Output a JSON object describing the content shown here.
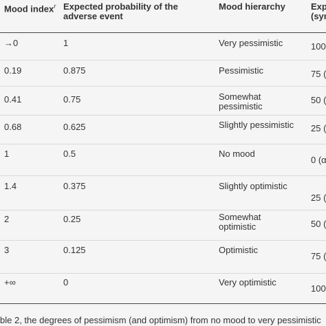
{
  "table": {
    "headers": {
      "mood_index": "Mood index",
      "mood_index_sub": "r",
      "expected_probability": "Expected probability of the adverse event",
      "mood_hierarchy": "Mood hierarchy",
      "expected_partial": "Expe",
      "symbol_partial": "(sym"
    },
    "rows": [
      {
        "index": "→0",
        "probability": "1",
        "hierarchy": "Very pessimistic",
        "extra": "100"
      },
      {
        "index": "0.19",
        "probability": "0.875",
        "hierarchy": "Pessimistic",
        "extra": "75 ("
      },
      {
        "index": "0.41",
        "probability": "0.75",
        "hierarchy": "Somewhat pessimistic",
        "extra": "50 ("
      },
      {
        "index": "0.68",
        "probability": "0.625",
        "hierarchy": "Slightly pessimistic",
        "extra": "25 ("
      },
      {
        "index": "1",
        "probability": "0.5",
        "hierarchy": "No mood",
        "extra": "0 (α"
      },
      {
        "index": "1.4",
        "probability": "0.375",
        "hierarchy": "Slightly optimistic",
        "extra": "25 ("
      },
      {
        "index": "2",
        "probability": "0.25",
        "hierarchy": "Somewhat optimistic",
        "extra": "50 ("
      },
      {
        "index": "3",
        "probability": "0.125",
        "hierarchy": "Optimistic",
        "extra": "75 ("
      },
      {
        "index": "+∞",
        "probability": "0",
        "hierarchy": "Very optimistic",
        "extra": "100"
      }
    ]
  },
  "caption": "ble 2, the degrees of pessimism (and optimism) from no mood to very pessimistic"
}
